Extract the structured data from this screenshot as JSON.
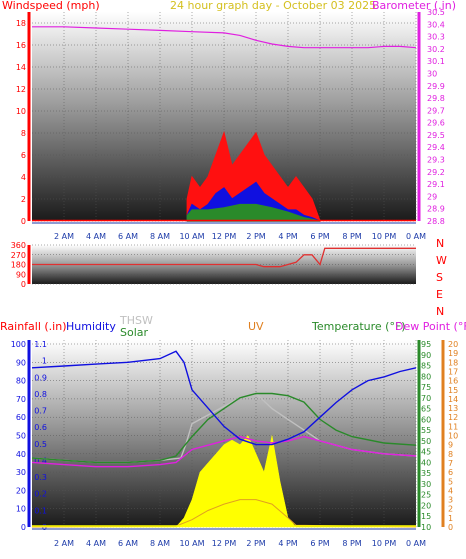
{
  "colors": {
    "wind": "#ff0000",
    "gust": "#ff1010",
    "wind_dir": "#e03030",
    "barometer": "#e020e0",
    "humidity": "#1010e0",
    "thsw": "#c0c0c0",
    "solar": "#2a8a2a",
    "uv": "#e0a020",
    "uv_fill": "#ffff00",
    "temperature": "#2a8a2a",
    "dew_point": "#e020e0",
    "rainfall": "#1010e0",
    "axis_blue": "#1010e0",
    "axis_magenta": "#e020e0",
    "axis_orange": "#e08020",
    "axis_green": "#2a8a2a",
    "axis_red": "#ff0000",
    "title_gold": "#d4c020"
  },
  "chart_data": [
    {
      "id": "wind_barometer",
      "type": "line",
      "title": "24 hour graph day - October 03 2025",
      "ylabel": "Windspeed (mph)",
      "y2label": "Barometer (.in)",
      "ylim": [
        0,
        19
      ],
      "y2lim": [
        28.8,
        30.5
      ],
      "y_ticks": [
        "0",
        "2",
        "4",
        "6",
        "8",
        "10",
        "12",
        "14",
        "16",
        "18"
      ],
      "y2_ticks": [
        "28.8",
        "28.9",
        "29",
        "29.1",
        "29.2",
        "29.3",
        "29.4",
        "29.5",
        "29.6",
        "29.7",
        "29.8",
        "29.9",
        "30",
        "30.1",
        "30.2",
        "30.3",
        "30.4",
        "30.5"
      ],
      "x_ticks": [
        "2 AM",
        "4 AM",
        "6 AM",
        "8 AM",
        "10 AM",
        "12 PM",
        "2 PM",
        "4 PM",
        "6 PM",
        "8 PM",
        "10 PM",
        "0 AM"
      ],
      "xlim": [
        0,
        24
      ],
      "grid": true,
      "series": [
        {
          "name": "Barometer",
          "axis": "right",
          "x": [
            0,
            2,
            4,
            6,
            8,
            10,
            12,
            13,
            14,
            15,
            16,
            17,
            18,
            19,
            20,
            21,
            22,
            23,
            24
          ],
          "y": [
            30.38,
            30.38,
            30.37,
            30.36,
            30.35,
            30.34,
            30.33,
            30.31,
            30.27,
            30.24,
            30.22,
            30.21,
            30.21,
            30.21,
            30.21,
            30.21,
            30.22,
            30.22,
            30.21
          ]
        },
        {
          "name": "Gust",
          "axis": "left",
          "x": [
            9.7,
            10,
            10.5,
            11,
            11.5,
            12,
            12.5,
            13,
            13.5,
            14,
            14.5,
            15,
            15.5,
            16,
            16.5,
            17,
            17.5,
            18
          ],
          "y": [
            2,
            4,
            3,
            4,
            6,
            8,
            5,
            6,
            7,
            8,
            6,
            5,
            4,
            3,
            4,
            3,
            2,
            0
          ]
        },
        {
          "name": "Windspeed",
          "axis": "left",
          "x": [
            9.7,
            10,
            10.5,
            11,
            11.5,
            12,
            12.5,
            13,
            13.5,
            14,
            14.5,
            15,
            15.5,
            16,
            16.5,
            17,
            17.5,
            18
          ],
          "y": [
            0.5,
            1.5,
            1,
            1.5,
            2.5,
            3,
            2,
            2.5,
            3,
            3.5,
            2.5,
            2,
            1.5,
            1,
            1,
            0.5,
            0.3,
            0
          ]
        },
        {
          "name": "Windspeed avg",
          "axis": "left",
          "x": [
            9.7,
            10,
            11,
            12,
            13,
            14,
            15,
            16,
            17,
            18
          ],
          "y": [
            0.5,
            1,
            1,
            1.2,
            1.5,
            1.5,
            1.2,
            0.8,
            0.3,
            0
          ]
        }
      ]
    },
    {
      "id": "wind_direction",
      "type": "line",
      "ylabel": "",
      "ylim": [
        0,
        360
      ],
      "y_ticks": [
        "0",
        "90",
        "180",
        "270",
        "360"
      ],
      "y2_labels": [
        "N",
        "W",
        "S",
        "E",
        "N"
      ],
      "grid": true,
      "series": [
        {
          "name": "Direction",
          "x": [
            0,
            14,
            14.5,
            15.5,
            16,
            16.5,
            17,
            17.5,
            18,
            18.3,
            20,
            22,
            24
          ],
          "y": [
            180,
            180,
            160,
            160,
            180,
            200,
            270,
            270,
            180,
            330,
            330,
            330,
            330
          ]
        }
      ]
    },
    {
      "id": "temp_humidity_solar",
      "type": "line",
      "ylabel": "Rainfall (.in)",
      "legend": [
        "Humidity",
        "THSW",
        "Solar",
        "UV",
        "Temperature (°F)",
        "Dew Point (°F)"
      ],
      "axes": {
        "humidity": {
          "ticks": [
            "0",
            "10",
            "20",
            "30",
            "40",
            "50",
            "60",
            "70",
            "80",
            "90",
            "100"
          ]
        },
        "rainfall": {
          "ticks": [
            "0",
            "0.1",
            "0.2",
            "0.3",
            "0.4",
            "0.5",
            "0.6",
            "0.7",
            "0.8",
            "0.9",
            "1",
            "1.1"
          ]
        },
        "temperature": {
          "ticks": [
            "10",
            "15",
            "20",
            "25",
            "30",
            "35",
            "40",
            "45",
            "50",
            "55",
            "60",
            "65",
            "70",
            "75",
            "80",
            "85",
            "90",
            "95"
          ]
        },
        "uv": {
          "ticks": [
            "0",
            "1",
            "2",
            "3",
            "4",
            "5",
            "6",
            "7",
            "8",
            "9",
            "10",
            "11",
            "12",
            "13",
            "14",
            "15",
            "16",
            "17",
            "18",
            "19",
            "20"
          ]
        }
      },
      "x_ticks": [
        "2 AM",
        "4 AM",
        "6 AM",
        "8 AM",
        "10 AM",
        "12 PM",
        "2 PM",
        "4 PM",
        "6 PM",
        "8 PM",
        "10 PM",
        "0 AM"
      ],
      "grid": true,
      "series": [
        {
          "name": "Humidity",
          "axis": "humidity",
          "x": [
            0,
            2,
            4,
            6,
            8,
            9,
            9.5,
            10,
            11,
            12,
            13,
            14,
            15,
            16,
            17,
            18,
            19,
            20,
            21,
            22,
            23,
            24
          ],
          "y": [
            87,
            88,
            89,
            90,
            92,
            96,
            90,
            75,
            65,
            55,
            48,
            45,
            45,
            48,
            52,
            60,
            68,
            75,
            80,
            82,
            85,
            87
          ]
        },
        {
          "name": "THSW",
          "axis": "temperature",
          "x": [
            0,
            2,
            4,
            6,
            8,
            9.3,
            9.6,
            10,
            11,
            12,
            13,
            14,
            15,
            16,
            17,
            18,
            19,
            20,
            22,
            24
          ],
          "y": [
            42,
            41,
            40,
            40,
            41,
            42,
            48,
            58,
            62,
            66,
            70,
            72,
            65,
            60,
            55,
            50,
            48,
            46,
            44,
            43
          ]
        },
        {
          "name": "Temperature",
          "axis": "temperature",
          "x": [
            0,
            2,
            4,
            6,
            8,
            9,
            10,
            11,
            12,
            13,
            14,
            15,
            16,
            17,
            18,
            19,
            20,
            22,
            24
          ],
          "y": [
            42,
            41,
            40,
            40,
            41,
            43,
            52,
            60,
            65,
            70,
            72,
            72,
            71,
            68,
            60,
            55,
            52,
            49,
            48
          ]
        },
        {
          "name": "Dew Point",
          "axis": "temperature",
          "x": [
            0,
            2,
            4,
            6,
            8,
            9,
            10,
            11,
            12,
            13,
            14,
            15,
            16,
            17,
            18,
            19,
            20,
            22,
            24
          ],
          "y": [
            40,
            39,
            38,
            38,
            39,
            40,
            46,
            48,
            50,
            52,
            50,
            49,
            50,
            52,
            50,
            48,
            46,
            44,
            43
          ]
        },
        {
          "name": "Solar",
          "axis": "uv",
          "x": [
            0,
            9,
            9.5,
            10,
            10.5,
            11,
            11.5,
            12,
            12.5,
            13,
            13.5,
            14,
            14.5,
            15,
            15.5,
            16,
            16.5,
            24
          ],
          "y": [
            0,
            0,
            1,
            3,
            6,
            7,
            8,
            9,
            9.5,
            9,
            10,
            8,
            6,
            10,
            5,
            1,
            0,
            0
          ]
        },
        {
          "name": "UV",
          "axis": "uv",
          "x": [
            0,
            9,
            10,
            11,
            12,
            13,
            14,
            15,
            16,
            16.5,
            24
          ],
          "y": [
            0,
            0.1,
            0.8,
            1.8,
            2.5,
            3,
            3,
            2.5,
            1,
            0.2,
            0
          ]
        }
      ]
    }
  ]
}
